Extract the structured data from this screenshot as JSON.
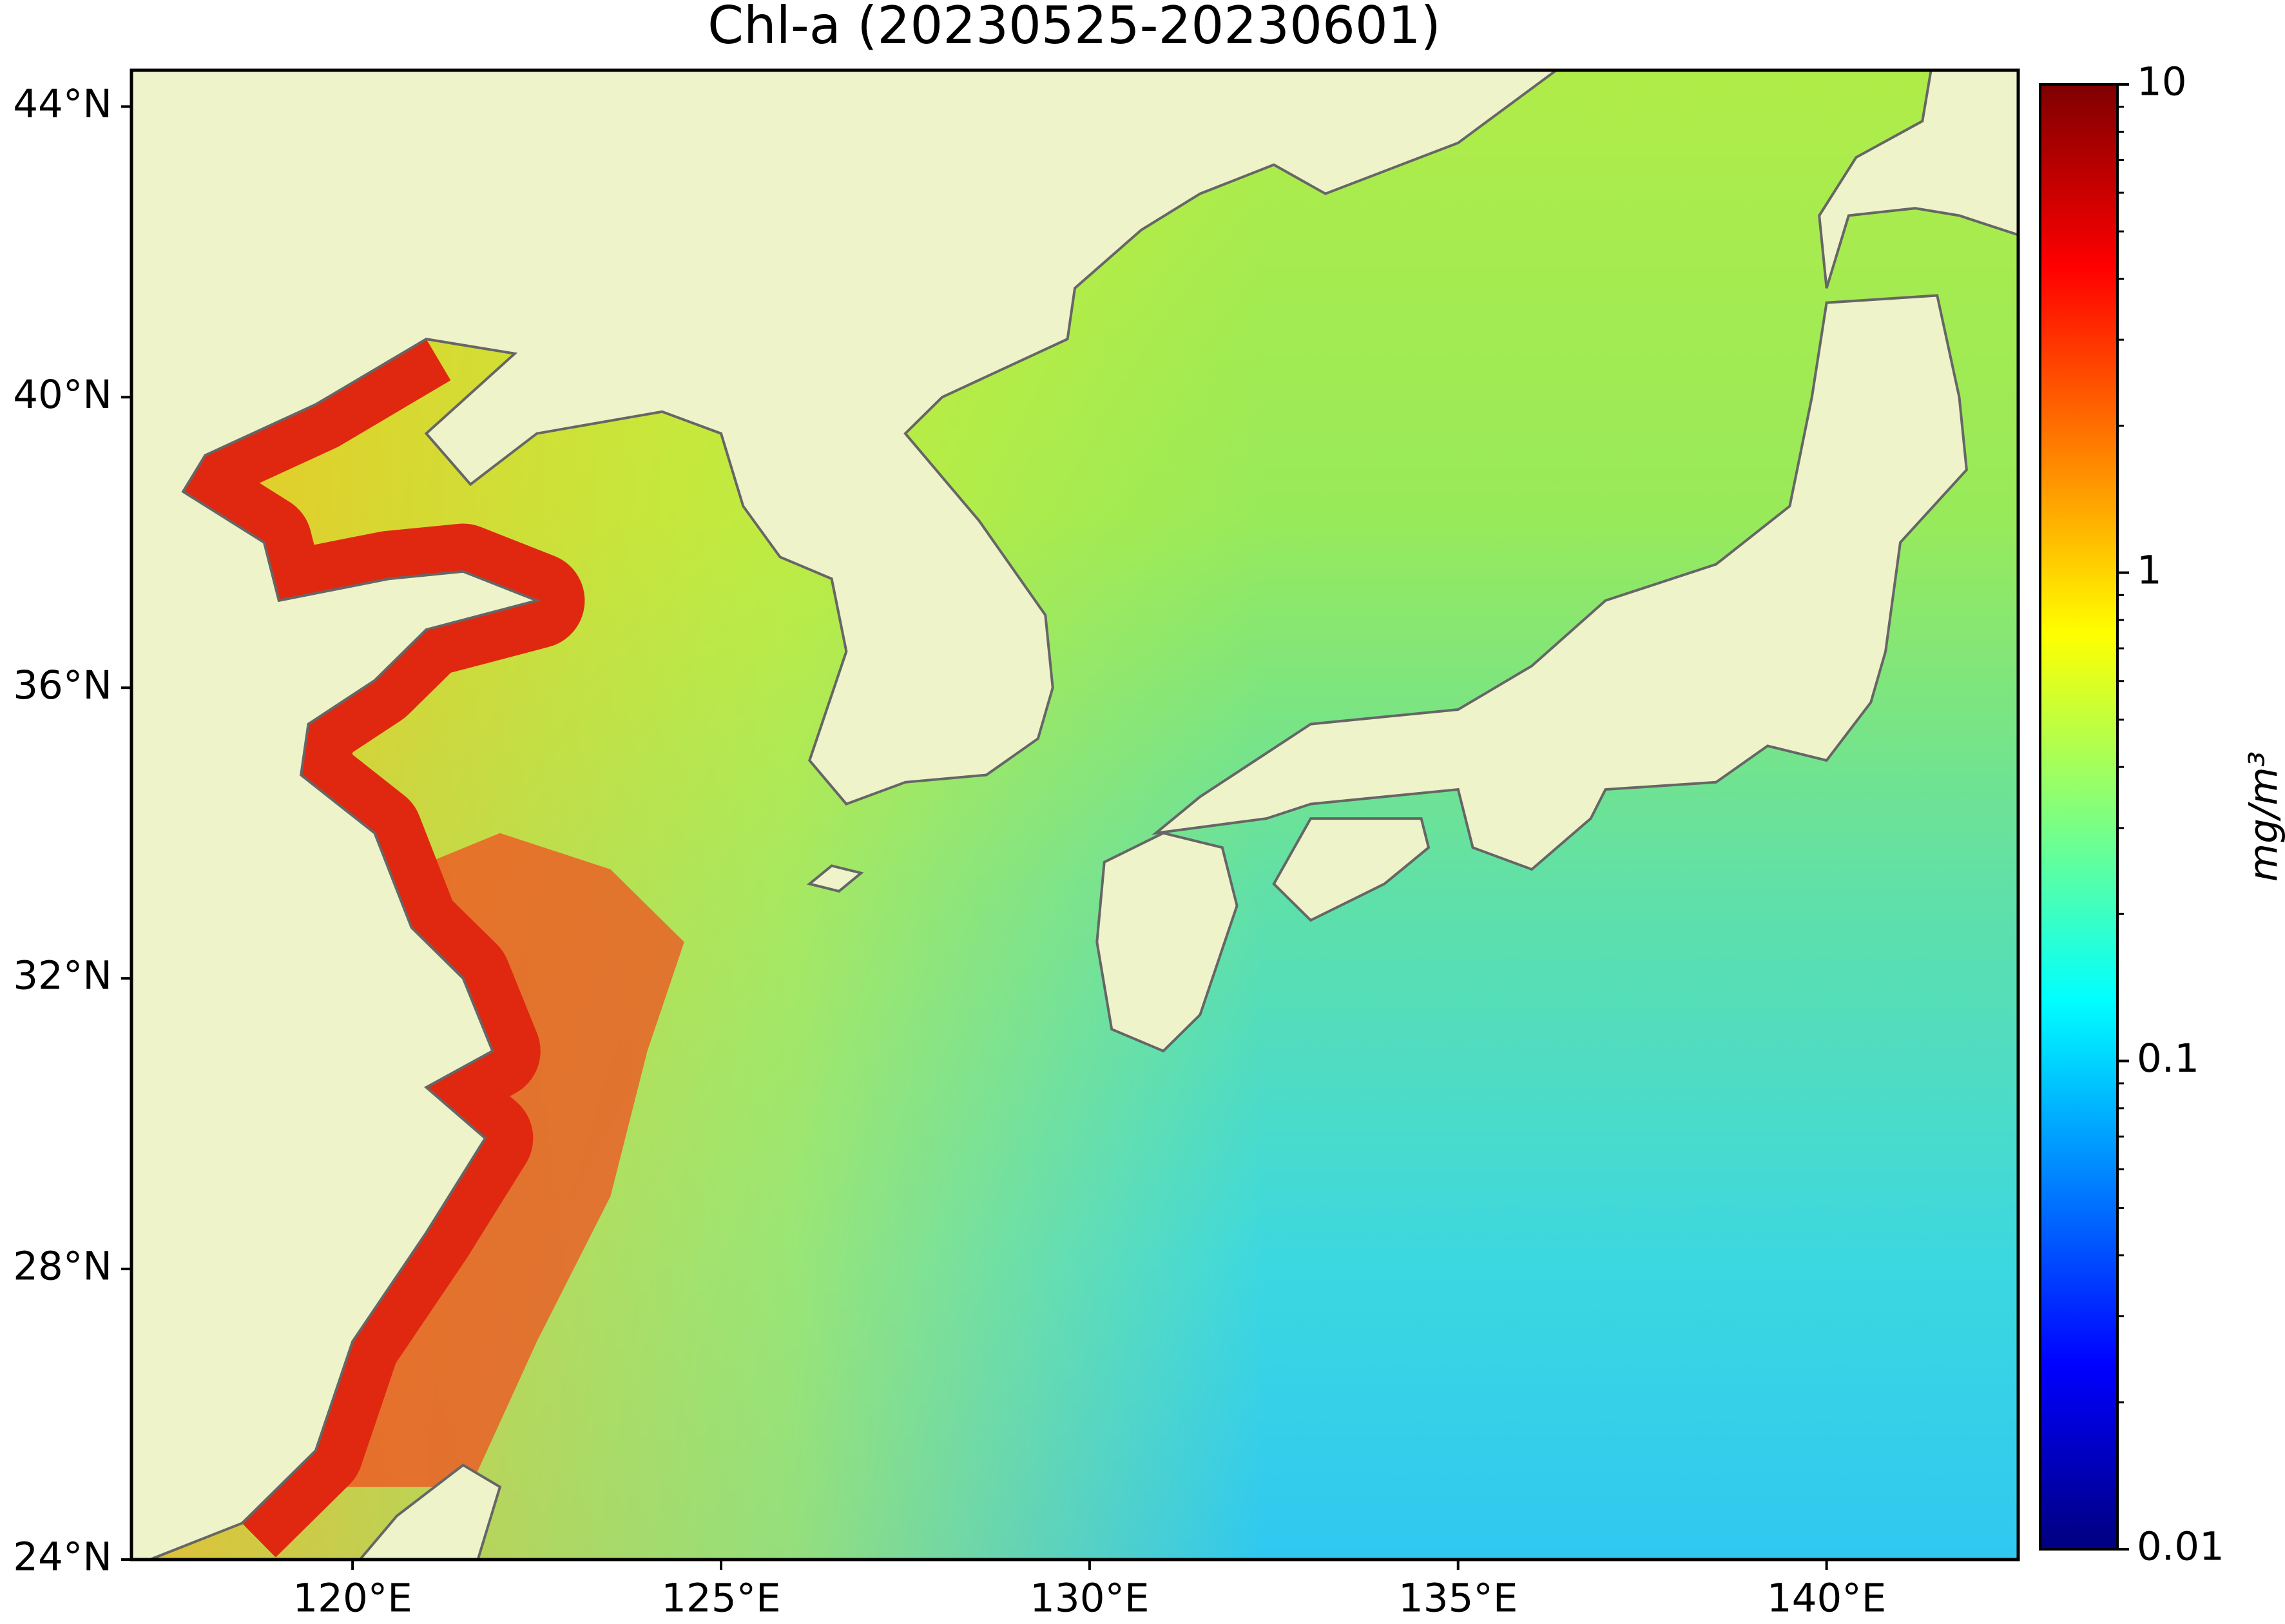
{
  "title": "Chl-a (20230525-20230601)",
  "map": {
    "xlim": [
      117,
      142.6
    ],
    "ylim": [
      24,
      44.5
    ],
    "xticks": [
      {
        "value": 120,
        "label": "120°E"
      },
      {
        "value": 125,
        "label": "125°E"
      },
      {
        "value": 130,
        "label": "130°E"
      },
      {
        "value": 135,
        "label": "135°E"
      },
      {
        "value": 140,
        "label": "140°E"
      }
    ],
    "yticks": [
      {
        "value": 24,
        "label": "24°N"
      },
      {
        "value": 28,
        "label": "28°N"
      },
      {
        "value": 32,
        "label": "32°N"
      },
      {
        "value": 36,
        "label": "36°N"
      },
      {
        "value": 40,
        "label": "40°N"
      },
      {
        "value": 44,
        "label": "44°N"
      }
    ]
  },
  "colorbar": {
    "label": "mg/m³",
    "scale": "log",
    "lim": [
      0.01,
      10
    ],
    "ticks": [
      0.01,
      0.1,
      1,
      10
    ]
  }
}
